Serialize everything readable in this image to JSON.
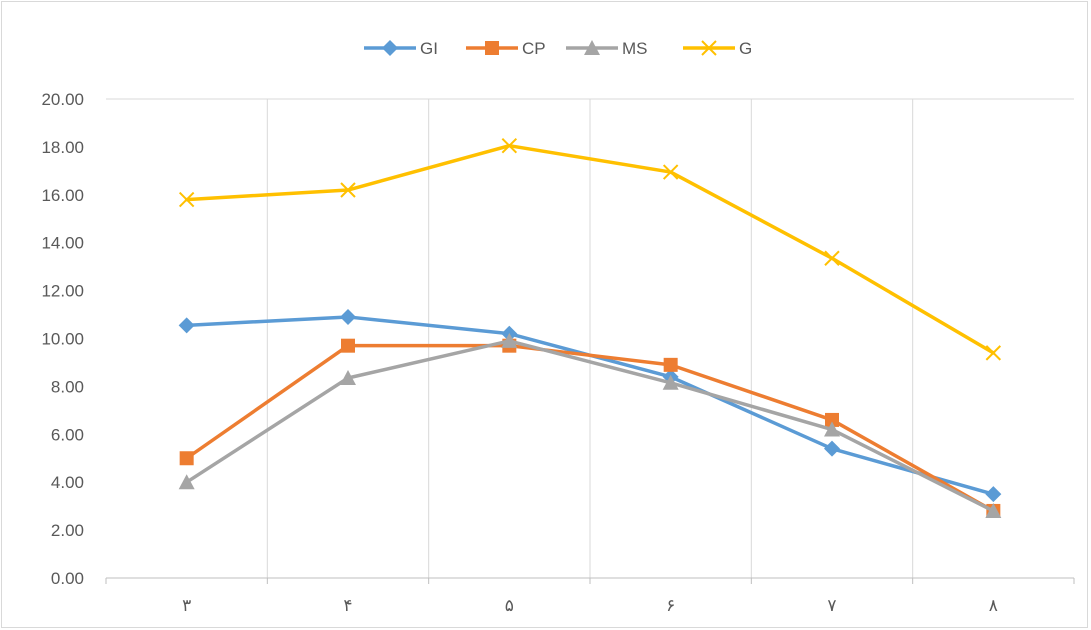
{
  "chart_data": {
    "type": "line",
    "title": "",
    "xlabel": "",
    "ylabel": "",
    "categories": [
      "٣",
      "۴",
      "۵",
      "۶",
      "٧",
      "٨"
    ],
    "ylim": [
      0,
      20
    ],
    "ytick_step": 2,
    "ytick_labels": [
      "0.00",
      "2.00",
      "4.00",
      "6.00",
      "8.00",
      "10.00",
      "12.00",
      "14.00",
      "16.00",
      "18.00",
      "20.00"
    ],
    "grid": "vertical-category-separators",
    "legend_position": "top",
    "series": [
      {
        "name": "GI",
        "color": "#5b9bd5",
        "marker": "diamond",
        "values": [
          10.55,
          10.9,
          10.2,
          8.4,
          5.4,
          3.5
        ]
      },
      {
        "name": "CP",
        "color": "#ed7d31",
        "marker": "square",
        "values": [
          5.0,
          9.7,
          9.7,
          8.9,
          6.6,
          2.8
        ]
      },
      {
        "name": "MS",
        "color": "#a5a5a5",
        "marker": "triangle",
        "values": [
          4.0,
          8.35,
          9.9,
          8.15,
          6.2,
          2.8
        ]
      },
      {
        "name": "G",
        "color": "#ffc000",
        "marker": "x",
        "values": [
          15.8,
          16.2,
          18.05,
          16.95,
          13.35,
          9.4
        ]
      }
    ]
  }
}
